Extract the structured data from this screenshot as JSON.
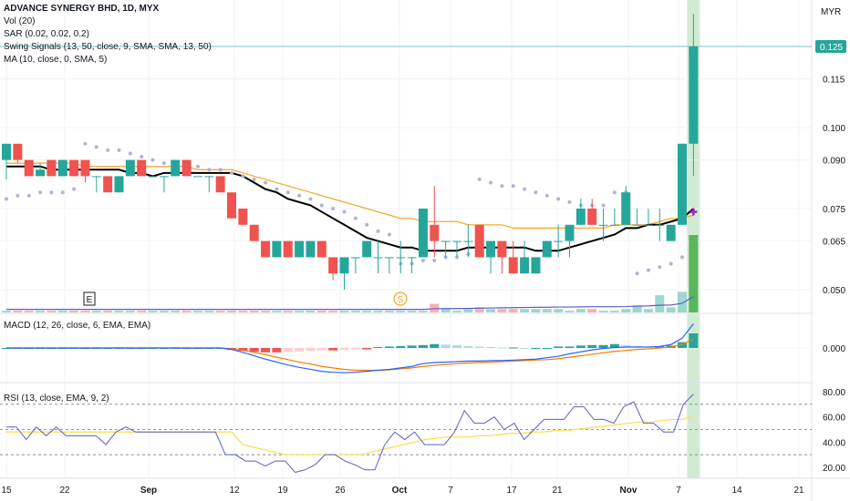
{
  "header": {
    "symbol_title": "ADVANCE SYNERGY BHD, 1D, MYX",
    "currency": "MYR",
    "indicators": [
      "Vol (20)",
      "SAR (0.02, 0.02, 0.2)",
      "Swing Signals (13, 50, close, 9, SMA, SMA, 13, 50)",
      "MA (10, close, 0, SMA, 5)"
    ]
  },
  "price_label": "0.125",
  "markers": {
    "earnings": "E",
    "dividend": "S"
  },
  "macd_panel": {
    "label": "MACD (12, 26, close, 6, EMA, EMA)",
    "tick": "0.000"
  },
  "rsi_panel": {
    "label": "RSI (13, close, EMA, 9, 2)",
    "ticks": [
      "80.00",
      "60.00",
      "40.00",
      "20.00"
    ]
  },
  "colors": {
    "up": "#26a69a",
    "down": "#ef5350",
    "ma_black": "#000000",
    "ma_orange": "#f5a623",
    "sar": "#b0b3d6",
    "rsi": "#5b5fc7",
    "rsi_signal": "#f5e04a",
    "highlight": "#a5d6a7",
    "vol": "#9c27b0"
  },
  "chart_data": [
    {
      "type": "candlestick",
      "title": "ADVANCE SYNERGY BHD, 1D, MYX",
      "ylabel": "MYR",
      "y_ticks": [
        0.125,
        0.115,
        0.1,
        0.09,
        0.075,
        0.065,
        0.05
      ],
      "x_ticks": [
        "15",
        "22",
        "Sep",
        "12",
        "19",
        "26",
        "Oct",
        "7",
        "17",
        "21",
        "Nov",
        "7",
        "14",
        "21"
      ],
      "last_price": 0.125,
      "candles": [
        {
          "o": 0.09,
          "h": 0.095,
          "l": 0.084,
          "c": 0.095
        },
        {
          "o": 0.095,
          "h": 0.095,
          "l": 0.089,
          "c": 0.09
        },
        {
          "o": 0.09,
          "h": 0.09,
          "l": 0.085,
          "c": 0.085
        },
        {
          "o": 0.085,
          "h": 0.089,
          "l": 0.085,
          "c": 0.087
        },
        {
          "o": 0.09,
          "h": 0.09,
          "l": 0.085,
          "c": 0.085
        },
        {
          "o": 0.085,
          "h": 0.09,
          "l": 0.085,
          "c": 0.09
        },
        {
          "o": 0.09,
          "h": 0.09,
          "l": 0.085,
          "c": 0.085
        },
        {
          "o": 0.09,
          "h": 0.09,
          "l": 0.083,
          "c": 0.085
        },
        {
          "o": 0.085,
          "h": 0.085,
          "l": 0.08,
          "c": 0.085
        },
        {
          "o": 0.085,
          "h": 0.085,
          "l": 0.08,
          "c": 0.08
        },
        {
          "o": 0.08,
          "h": 0.085,
          "l": 0.08,
          "c": 0.085
        },
        {
          "o": 0.085,
          "h": 0.09,
          "l": 0.085,
          "c": 0.09
        },
        {
          "o": 0.09,
          "h": 0.09,
          "l": 0.085,
          "c": 0.085
        },
        {
          "o": 0.085,
          "h": 0.085,
          "l": 0.085,
          "c": 0.085
        },
        {
          "o": 0.085,
          "h": 0.085,
          "l": 0.08,
          "c": 0.085
        },
        {
          "o": 0.085,
          "h": 0.09,
          "l": 0.085,
          "c": 0.09
        },
        {
          "o": 0.09,
          "h": 0.09,
          "l": 0.085,
          "c": 0.085
        },
        {
          "o": 0.085,
          "h": 0.085,
          "l": 0.085,
          "c": 0.085
        },
        {
          "o": 0.085,
          "h": 0.085,
          "l": 0.08,
          "c": 0.085
        },
        {
          "o": 0.085,
          "h": 0.085,
          "l": 0.08,
          "c": 0.08
        },
        {
          "o": 0.08,
          "h": 0.08,
          "l": 0.072,
          "c": 0.072
        },
        {
          "o": 0.075,
          "h": 0.075,
          "l": 0.07,
          "c": 0.07
        },
        {
          "o": 0.07,
          "h": 0.07,
          "l": 0.065,
          "c": 0.065
        },
        {
          "o": 0.065,
          "h": 0.065,
          "l": 0.06,
          "c": 0.06
        },
        {
          "o": 0.06,
          "h": 0.065,
          "l": 0.06,
          "c": 0.065
        },
        {
          "o": 0.065,
          "h": 0.065,
          "l": 0.06,
          "c": 0.06
        },
        {
          "o": 0.06,
          "h": 0.065,
          "l": 0.06,
          "c": 0.065
        },
        {
          "o": 0.06,
          "h": 0.065,
          "l": 0.06,
          "c": 0.065
        },
        {
          "o": 0.065,
          "h": 0.065,
          "l": 0.06,
          "c": 0.06
        },
        {
          "o": 0.06,
          "h": 0.06,
          "l": 0.053,
          "c": 0.055
        },
        {
          "o": 0.055,
          "h": 0.06,
          "l": 0.05,
          "c": 0.06
        },
        {
          "o": 0.06,
          "h": 0.06,
          "l": 0.055,
          "c": 0.06
        },
        {
          "o": 0.06,
          "h": 0.065,
          "l": 0.06,
          "c": 0.065
        },
        {
          "o": 0.06,
          "h": 0.065,
          "l": 0.055,
          "c": 0.06
        },
        {
          "o": 0.06,
          "h": 0.06,
          "l": 0.055,
          "c": 0.06
        },
        {
          "o": 0.06,
          "h": 0.065,
          "l": 0.055,
          "c": 0.06
        },
        {
          "o": 0.06,
          "h": 0.06,
          "l": 0.055,
          "c": 0.06
        },
        {
          "o": 0.06,
          "h": 0.075,
          "l": 0.06,
          "c": 0.075
        },
        {
          "o": 0.07,
          "h": 0.082,
          "l": 0.06,
          "c": 0.065
        },
        {
          "o": 0.065,
          "h": 0.065,
          "l": 0.06,
          "c": 0.065
        },
        {
          "o": 0.065,
          "h": 0.065,
          "l": 0.06,
          "c": 0.065
        },
        {
          "o": 0.065,
          "h": 0.07,
          "l": 0.06,
          "c": 0.065
        },
        {
          "o": 0.07,
          "h": 0.07,
          "l": 0.06,
          "c": 0.06
        },
        {
          "o": 0.06,
          "h": 0.065,
          "l": 0.055,
          "c": 0.065
        },
        {
          "o": 0.065,
          "h": 0.065,
          "l": 0.055,
          "c": 0.06
        },
        {
          "o": 0.06,
          "h": 0.065,
          "l": 0.055,
          "c": 0.055
        },
        {
          "o": 0.055,
          "h": 0.065,
          "l": 0.055,
          "c": 0.06
        },
        {
          "o": 0.055,
          "h": 0.06,
          "l": 0.055,
          "c": 0.06
        },
        {
          "o": 0.06,
          "h": 0.065,
          "l": 0.06,
          "c": 0.065
        },
        {
          "o": 0.065,
          "h": 0.07,
          "l": 0.06,
          "c": 0.065
        },
        {
          "o": 0.065,
          "h": 0.07,
          "l": 0.06,
          "c": 0.07
        },
        {
          "o": 0.07,
          "h": 0.078,
          "l": 0.07,
          "c": 0.075
        },
        {
          "o": 0.075,
          "h": 0.078,
          "l": 0.07,
          "c": 0.07
        },
        {
          "o": 0.07,
          "h": 0.075,
          "l": 0.065,
          "c": 0.07
        },
        {
          "o": 0.07,
          "h": 0.075,
          "l": 0.07,
          "c": 0.07
        },
        {
          "o": 0.07,
          "h": 0.082,
          "l": 0.07,
          "c": 0.08
        },
        {
          "o": 0.07,
          "h": 0.075,
          "l": 0.07,
          "c": 0.07
        },
        {
          "o": 0.07,
          "h": 0.075,
          "l": 0.07,
          "c": 0.07
        },
        {
          "o": 0.07,
          "h": 0.075,
          "l": 0.065,
          "c": 0.07
        },
        {
          "o": 0.065,
          "h": 0.07,
          "l": 0.065,
          "c": 0.07
        },
        {
          "o": 0.07,
          "h": 0.095,
          "l": 0.07,
          "c": 0.095
        },
        {
          "o": 0.095,
          "h": 0.135,
          "l": 0.085,
          "c": 0.125
        }
      ],
      "ma_10": [
        0.088,
        0.088,
        0.088,
        0.088,
        0.087,
        0.087,
        0.087,
        0.087,
        0.087,
        0.087,
        0.087,
        0.086,
        0.086,
        0.085,
        0.086,
        0.086,
        0.086,
        0.086,
        0.086,
        0.086,
        0.086,
        0.085,
        0.083,
        0.081,
        0.08,
        0.078,
        0.077,
        0.076,
        0.074,
        0.072,
        0.07,
        0.068,
        0.066,
        0.065,
        0.064,
        0.063,
        0.063,
        0.062,
        0.062,
        0.062,
        0.062,
        0.063,
        0.063,
        0.063,
        0.063,
        0.063,
        0.063,
        0.062,
        0.062,
        0.062,
        0.063,
        0.064,
        0.065,
        0.066,
        0.067,
        0.069,
        0.069,
        0.07,
        0.07,
        0.071,
        0.072,
        0.075
      ],
      "ma_50": [
        0.089,
        0.089,
        0.089,
        0.089,
        0.089,
        0.089,
        0.089,
        0.088,
        0.088,
        0.088,
        0.088,
        0.088,
        0.088,
        0.088,
        0.088,
        0.088,
        0.088,
        0.087,
        0.087,
        0.087,
        0.087,
        0.086,
        0.085,
        0.084,
        0.083,
        0.082,
        0.081,
        0.08,
        0.079,
        0.078,
        0.077,
        0.076,
        0.075,
        0.074,
        0.073,
        0.072,
        0.072,
        0.071,
        0.071,
        0.071,
        0.071,
        0.07,
        0.07,
        0.07,
        0.07,
        0.069,
        0.069,
        0.069,
        0.069,
        0.069,
        0.069,
        0.069,
        0.069,
        0.069,
        0.07,
        0.07,
        0.07,
        0.07,
        0.071,
        0.072,
        0.072,
        0.073
      ],
      "sar": [
        0.078,
        0.079,
        0.079,
        0.08,
        0.08,
        0.08,
        0.081,
        0.095,
        0.094,
        0.093,
        0.093,
        0.092,
        0.091,
        0.09,
        0.089,
        0.089,
        0.088,
        0.088,
        0.087,
        0.087,
        0.086,
        0.085,
        0.084,
        0.083,
        0.081,
        0.08,
        0.079,
        0.078,
        0.076,
        0.075,
        0.074,
        0.072,
        0.07,
        0.068,
        0.067,
        0.058,
        0.058,
        0.059,
        0.059,
        0.06,
        0.06,
        0.061,
        0.084,
        0.083,
        0.082,
        0.082,
        0.081,
        0.08,
        0.079,
        0.078,
        0.077,
        0.076,
        0.076,
        0.076,
        0.08,
        0.08,
        0.055,
        0.056,
        0.057,
        0.058,
        0.06,
        0.074
      ],
      "volume": [
        0.1,
        0.1,
        0.1,
        0.1,
        0.1,
        0.1,
        0.1,
        0.1,
        0.1,
        0.1,
        0.1,
        0.1,
        0.1,
        0.1,
        0.1,
        0.1,
        0.1,
        0.1,
        0.1,
        0.1,
        0.1,
        0.1,
        0.1,
        0.1,
        0.1,
        0.1,
        0.1,
        0.1,
        0.1,
        0.1,
        0.1,
        0.1,
        0.1,
        0.1,
        0.1,
        0.1,
        0.1,
        0.1,
        0.5,
        0.2,
        0.1,
        0.2,
        0.3,
        0.2,
        0.2,
        0.2,
        0.2,
        0.2,
        0.2,
        0.2,
        0.1,
        0.2,
        0.2,
        0.1,
        0.1,
        0.2,
        0.4,
        0.2,
        1.0,
        0.3,
        1.2,
        4.5
      ]
    },
    {
      "type": "bar",
      "title": "MACD (12, 26, close, 6, EMA, EMA)",
      "ylim": [
        -0.006,
        0.006
      ],
      "y_ticks": [
        0.0
      ],
      "histogram": [
        0.0,
        0.0,
        0.0,
        0.0,
        0.0,
        0.0,
        0.0,
        0.0,
        0.0,
        0.0,
        0.0,
        0.0,
        0.0,
        0.0,
        0.0,
        0.0,
        0.0,
        0.0,
        0.0,
        0.0,
        -0.0004,
        -0.0006,
        -0.0008,
        -0.0009,
        -0.0009,
        -0.0008,
        -0.0007,
        -0.0006,
        -0.0005,
        -0.0005,
        -0.0004,
        -0.0003,
        -0.0003,
        0.0002,
        0.0003,
        0.0004,
        0.0005,
        0.0006,
        0.0008,
        0.0007,
        0.0006,
        0.0004,
        0.0003,
        0.0002,
        0.0001,
        0.0001,
        0.0,
        0.0,
        0.0,
        0.0003,
        0.0003,
        0.0005,
        0.0006,
        0.0006,
        0.0008,
        0.0006,
        0.0004,
        0.0002,
        0.0003,
        0.0005,
        0.0012,
        0.003
      ],
      "macd": [
        0.0,
        0.0,
        0.0,
        0.0,
        0.0,
        0.0,
        0.0,
        0.0,
        0.0,
        0.0,
        0.0,
        0.0,
        0.0,
        0.0,
        0.0,
        0.0,
        0.0,
        0.0,
        0.0,
        0.0,
        -0.0003,
        -0.0009,
        -0.0016,
        -0.0023,
        -0.0029,
        -0.0035,
        -0.004,
        -0.0044,
        -0.0048,
        -0.005,
        -0.0051,
        -0.005,
        -0.0048,
        -0.0046,
        -0.0044,
        -0.0041,
        -0.0038,
        -0.0032,
        -0.003,
        -0.0029,
        -0.0028,
        -0.0027,
        -0.0027,
        -0.0026,
        -0.0026,
        -0.0025,
        -0.0024,
        -0.0023,
        -0.002,
        -0.0017,
        -0.0012,
        -0.0008,
        -0.0004,
        -0.0001,
        0.0001,
        0.0002,
        0.0002,
        0.0002,
        0.0003,
        0.0007,
        0.002,
        0.005
      ],
      "signal": [
        0.0,
        0.0,
        0.0,
        0.0,
        0.0,
        0.0,
        0.0,
        0.0,
        0.0,
        0.0,
        0.0,
        0.0,
        0.0,
        0.0,
        0.0,
        0.0,
        0.0,
        0.0,
        0.0,
        0.0,
        -0.0002,
        -0.0005,
        -0.0009,
        -0.0014,
        -0.0019,
        -0.0024,
        -0.0029,
        -0.0033,
        -0.0038,
        -0.0041,
        -0.0044,
        -0.0046,
        -0.0046,
        -0.0046,
        -0.0045,
        -0.0043,
        -0.0041,
        -0.0038,
        -0.0036,
        -0.0034,
        -0.0032,
        -0.0031,
        -0.003,
        -0.0029,
        -0.0028,
        -0.0027,
        -0.0026,
        -0.0025,
        -0.0024,
        -0.0022,
        -0.0019,
        -0.0016,
        -0.0013,
        -0.001,
        -0.0007,
        -0.0005,
        -0.0003,
        -0.0002,
        0.0,
        0.0002,
        0.0007,
        0.0018
      ]
    },
    {
      "type": "line",
      "title": "RSI (13, close, EMA, 9, 2)",
      "ylim": [
        10,
        85
      ],
      "y_ticks": [
        80,
        60,
        40,
        20
      ],
      "bands": [
        70,
        50,
        30
      ],
      "rsi": [
        52,
        52,
        42,
        52,
        45,
        52,
        45,
        45,
        45,
        45,
        38,
        48,
        52,
        48,
        48,
        48,
        48,
        48,
        48,
        48,
        48,
        48,
        30,
        30,
        25,
        25,
        21,
        25,
        25,
        16,
        18,
        22,
        30,
        30,
        25,
        22,
        18,
        18,
        38,
        48,
        42,
        48,
        38,
        38,
        38,
        48,
        65,
        55,
        55,
        60,
        50,
        55,
        42,
        50,
        58,
        58,
        58,
        68,
        68,
        58,
        58,
        55,
        68,
        72,
        55,
        55,
        48,
        48,
        70,
        78
      ],
      "signal": [
        48,
        48,
        48,
        48,
        48,
        48,
        48,
        48,
        48,
        48,
        48,
        48,
        48,
        48,
        48,
        48,
        48,
        48,
        48,
        48,
        48,
        48,
        38,
        36,
        34,
        32,
        30,
        30,
        30,
        30,
        30,
        30,
        30,
        30,
        32,
        34,
        36,
        38,
        40,
        42,
        43,
        44,
        44,
        44,
        45,
        45,
        46,
        47,
        47,
        48,
        48,
        49,
        49,
        50,
        51,
        52,
        53,
        54,
        55,
        56,
        56,
        57,
        58,
        58,
        60
      ]
    }
  ]
}
